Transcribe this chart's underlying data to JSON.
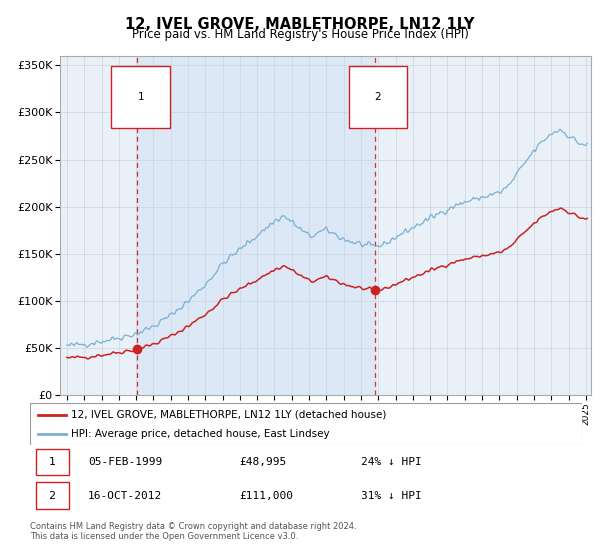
{
  "title": "12, IVEL GROVE, MABLETHORPE, LN12 1LY",
  "subtitle": "Price paid vs. HM Land Registry's House Price Index (HPI)",
  "ylim": [
    0,
    360000
  ],
  "yticks": [
    0,
    50000,
    100000,
    150000,
    200000,
    250000,
    300000,
    350000
  ],
  "ytick_labels": [
    "£0",
    "£50K",
    "£100K",
    "£150K",
    "£200K",
    "£250K",
    "£300K",
    "£350K"
  ],
  "plot_bg": "#eaf0f8",
  "shade_color": "#dce8f5",
  "line1_color": "#cc2222",
  "line2_color": "#7ab0d4",
  "marker_color": "#cc2222",
  "vline_color": "#cc3333",
  "sale1_date": 1999.08,
  "sale1_price": 48995,
  "sale2_date": 2012.79,
  "sale2_price": 111000,
  "legend1": "12, IVEL GROVE, MABLETHORPE, LN12 1LY (detached house)",
  "legend2": "HPI: Average price, detached house, East Lindsey",
  "table_row1": [
    "1",
    "05-FEB-1999",
    "£48,995",
    "24% ↓ HPI"
  ],
  "table_row2": [
    "2",
    "16-OCT-2012",
    "£111,000",
    "31% ↓ HPI"
  ],
  "footer": "Contains HM Land Registry data © Crown copyright and database right 2024.\nThis data is licensed under the Open Government Licence v3.0."
}
